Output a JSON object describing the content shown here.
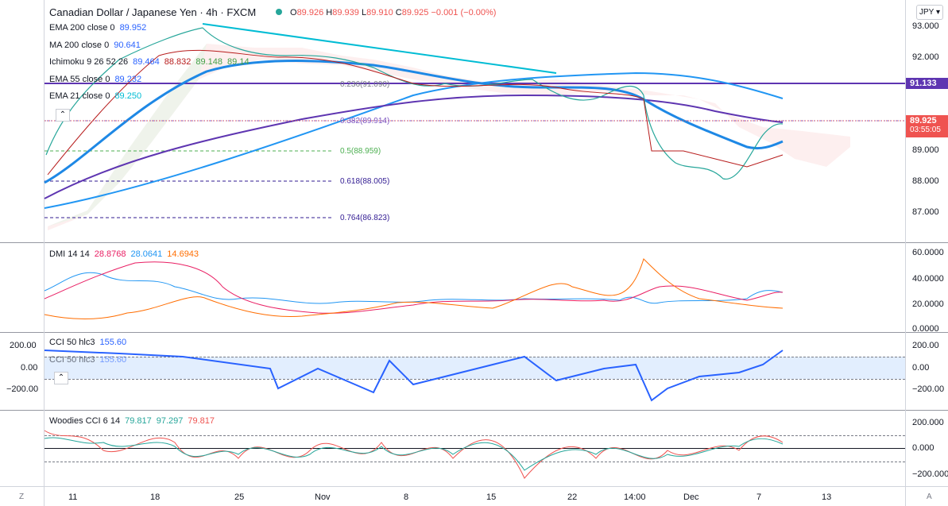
{
  "header": {
    "symbol": "Canadian Dollar / Japanese Yen · 4h · FXCM",
    "ohlc": {
      "o_label": "O",
      "o": "89.926",
      "h_label": "H",
      "h": "89.939",
      "l_label": "L",
      "l": "89.910",
      "c_label": "C",
      "c": "89.925",
      "change": "−0.001 (−0.00%)"
    }
  },
  "main_indicators": [
    {
      "name": "EMA 200 close 0",
      "value": "89.952",
      "color": "#2962ff"
    },
    {
      "name": "MA 200 close 0",
      "value": "90.641",
      "color": "#2962ff"
    },
    {
      "name": "Ichimoku 9 26 52 26",
      "values": [
        "89.464",
        "88.832",
        "89.148",
        "89.14"
      ],
      "colors": [
        "#2962ff",
        "#b71c1c",
        "#43a047",
        "#43a047"
      ]
    },
    {
      "name": "EMA 55 close 0",
      "value": "89.232",
      "color": "#2962ff"
    },
    {
      "name": "EMA 21 close 0",
      "value": "89.250",
      "color": "#00bcd4"
    }
  ],
  "fib_levels": [
    {
      "label": "0.236(91.090)",
      "color": "#787b86"
    },
    {
      "label": "0.382(89.914)",
      "color": "#7e57c2"
    },
    {
      "label": "0.5(88.959)",
      "color": "#4caf50"
    },
    {
      "label": "0.618(88.005)",
      "color": "#311b92"
    },
    {
      "label": "0.764(86.823)",
      "color": "#311b92"
    }
  ],
  "price_axis": [
    "93.000",
    "92.000",
    "89.000",
    "88.000",
    "87.000"
  ],
  "currency_button": "JPY",
  "price_badges": {
    "hline_value": "91.133",
    "last_price": "89.925",
    "countdown": "03:55:05"
  },
  "dmi": {
    "name": "DMI 14 14",
    "values": [
      "28.8768",
      "28.0641",
      "14.6943"
    ],
    "colors": [
      "#e91e63",
      "#2196f3",
      "#ff6d00"
    ],
    "axis": [
      "60.0000",
      "40.0000",
      "20.0000",
      "0.0000"
    ]
  },
  "cci": {
    "name": "CCI 50 hlc3",
    "value": "155.60",
    "value_color": "#2962ff",
    "axis_right": [
      "200.00",
      "0.00",
      "−200.00"
    ],
    "axis_left": [
      "200.00",
      "0.00",
      "−200.00"
    ]
  },
  "woodies": {
    "name": "Woodies CCI 6 14",
    "values": [
      "79.817",
      "97.297",
      "79.817"
    ],
    "colors": [
      "#26a69a",
      "#26a69a",
      "#ef5350"
    ],
    "axis": [
      "200.000",
      "0.000",
      "−200.000"
    ]
  },
  "time_axis": [
    "11",
    "18",
    "25",
    "Nov",
    "8",
    "15",
    "22",
    "14:00",
    "Dec",
    "7",
    "13"
  ],
  "corner_left": "Z",
  "corner_right": "A"
}
